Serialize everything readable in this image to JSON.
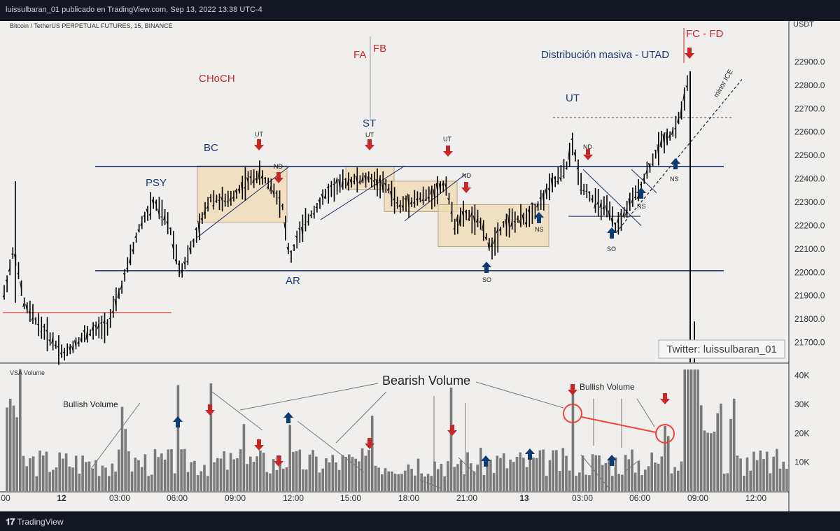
{
  "header": {
    "publisher": "luissulbaran_01 publicado en TradingView.com, Sep 13, 2022 13:38 UTC-4"
  },
  "footer": {
    "brand": "TradingView"
  },
  "chart_data": {
    "type": "candlestick-ohlc",
    "symbol_title": "Bitcoin / TetherUS PERPETUAL FUTURES, 15, BINANCE",
    "currency": "USDT",
    "price_axis": {
      "ticks": [
        21700,
        21800,
        21900,
        22000,
        22100,
        22200,
        22300,
        22400,
        22500,
        22600,
        22700,
        22800,
        22900
      ],
      "range": [
        21615,
        23045
      ]
    },
    "time_axis": {
      "ticks": [
        "00",
        "12",
        "03:00",
        "06:00",
        "09:00",
        "12:00",
        "15:00",
        "18:00",
        "21:00",
        "13",
        "03:00",
        "06:00",
        "09:00",
        "12:00"
      ]
    },
    "volume_axis": {
      "label": "VSA Volume",
      "ticks": [
        "10K",
        "20K",
        "30K",
        "40K"
      ],
      "max": 44000
    },
    "levels": {
      "range_high": 22452,
      "range_low": 22007,
      "old_support": 21828,
      "ut_reference": 22663
    },
    "annotations": {
      "choch": "CHoCH",
      "psy": "PSY",
      "bc": "BC",
      "ar": "AR",
      "st": "ST",
      "ut": "UT",
      "fa": "FA",
      "fb": "FB",
      "utad": "Distribución masiva - UTAD",
      "fc_fd": "FC - FD",
      "minor_ice": "minor ICE",
      "ut_small": "UT",
      "nd": "ND",
      "ns": "NS",
      "so": "SO",
      "twitter": "Twitter: luissulbaran_01",
      "bullish_volume": "Bullish Volume",
      "bearish_volume": "Bearish Volume"
    },
    "colors": {
      "bull_arrow": "#0c3a73",
      "bear_arrow": "#c62828",
      "level_line": "#1a2e66",
      "zone_fill": "#f2d9b3",
      "bar": "#000000",
      "volume": "#7a7a7a",
      "red_line": "#f44336",
      "label_blue": "#1a3a73",
      "label_red": "#c62828",
      "panel_bg": "#f0efed"
    }
  }
}
